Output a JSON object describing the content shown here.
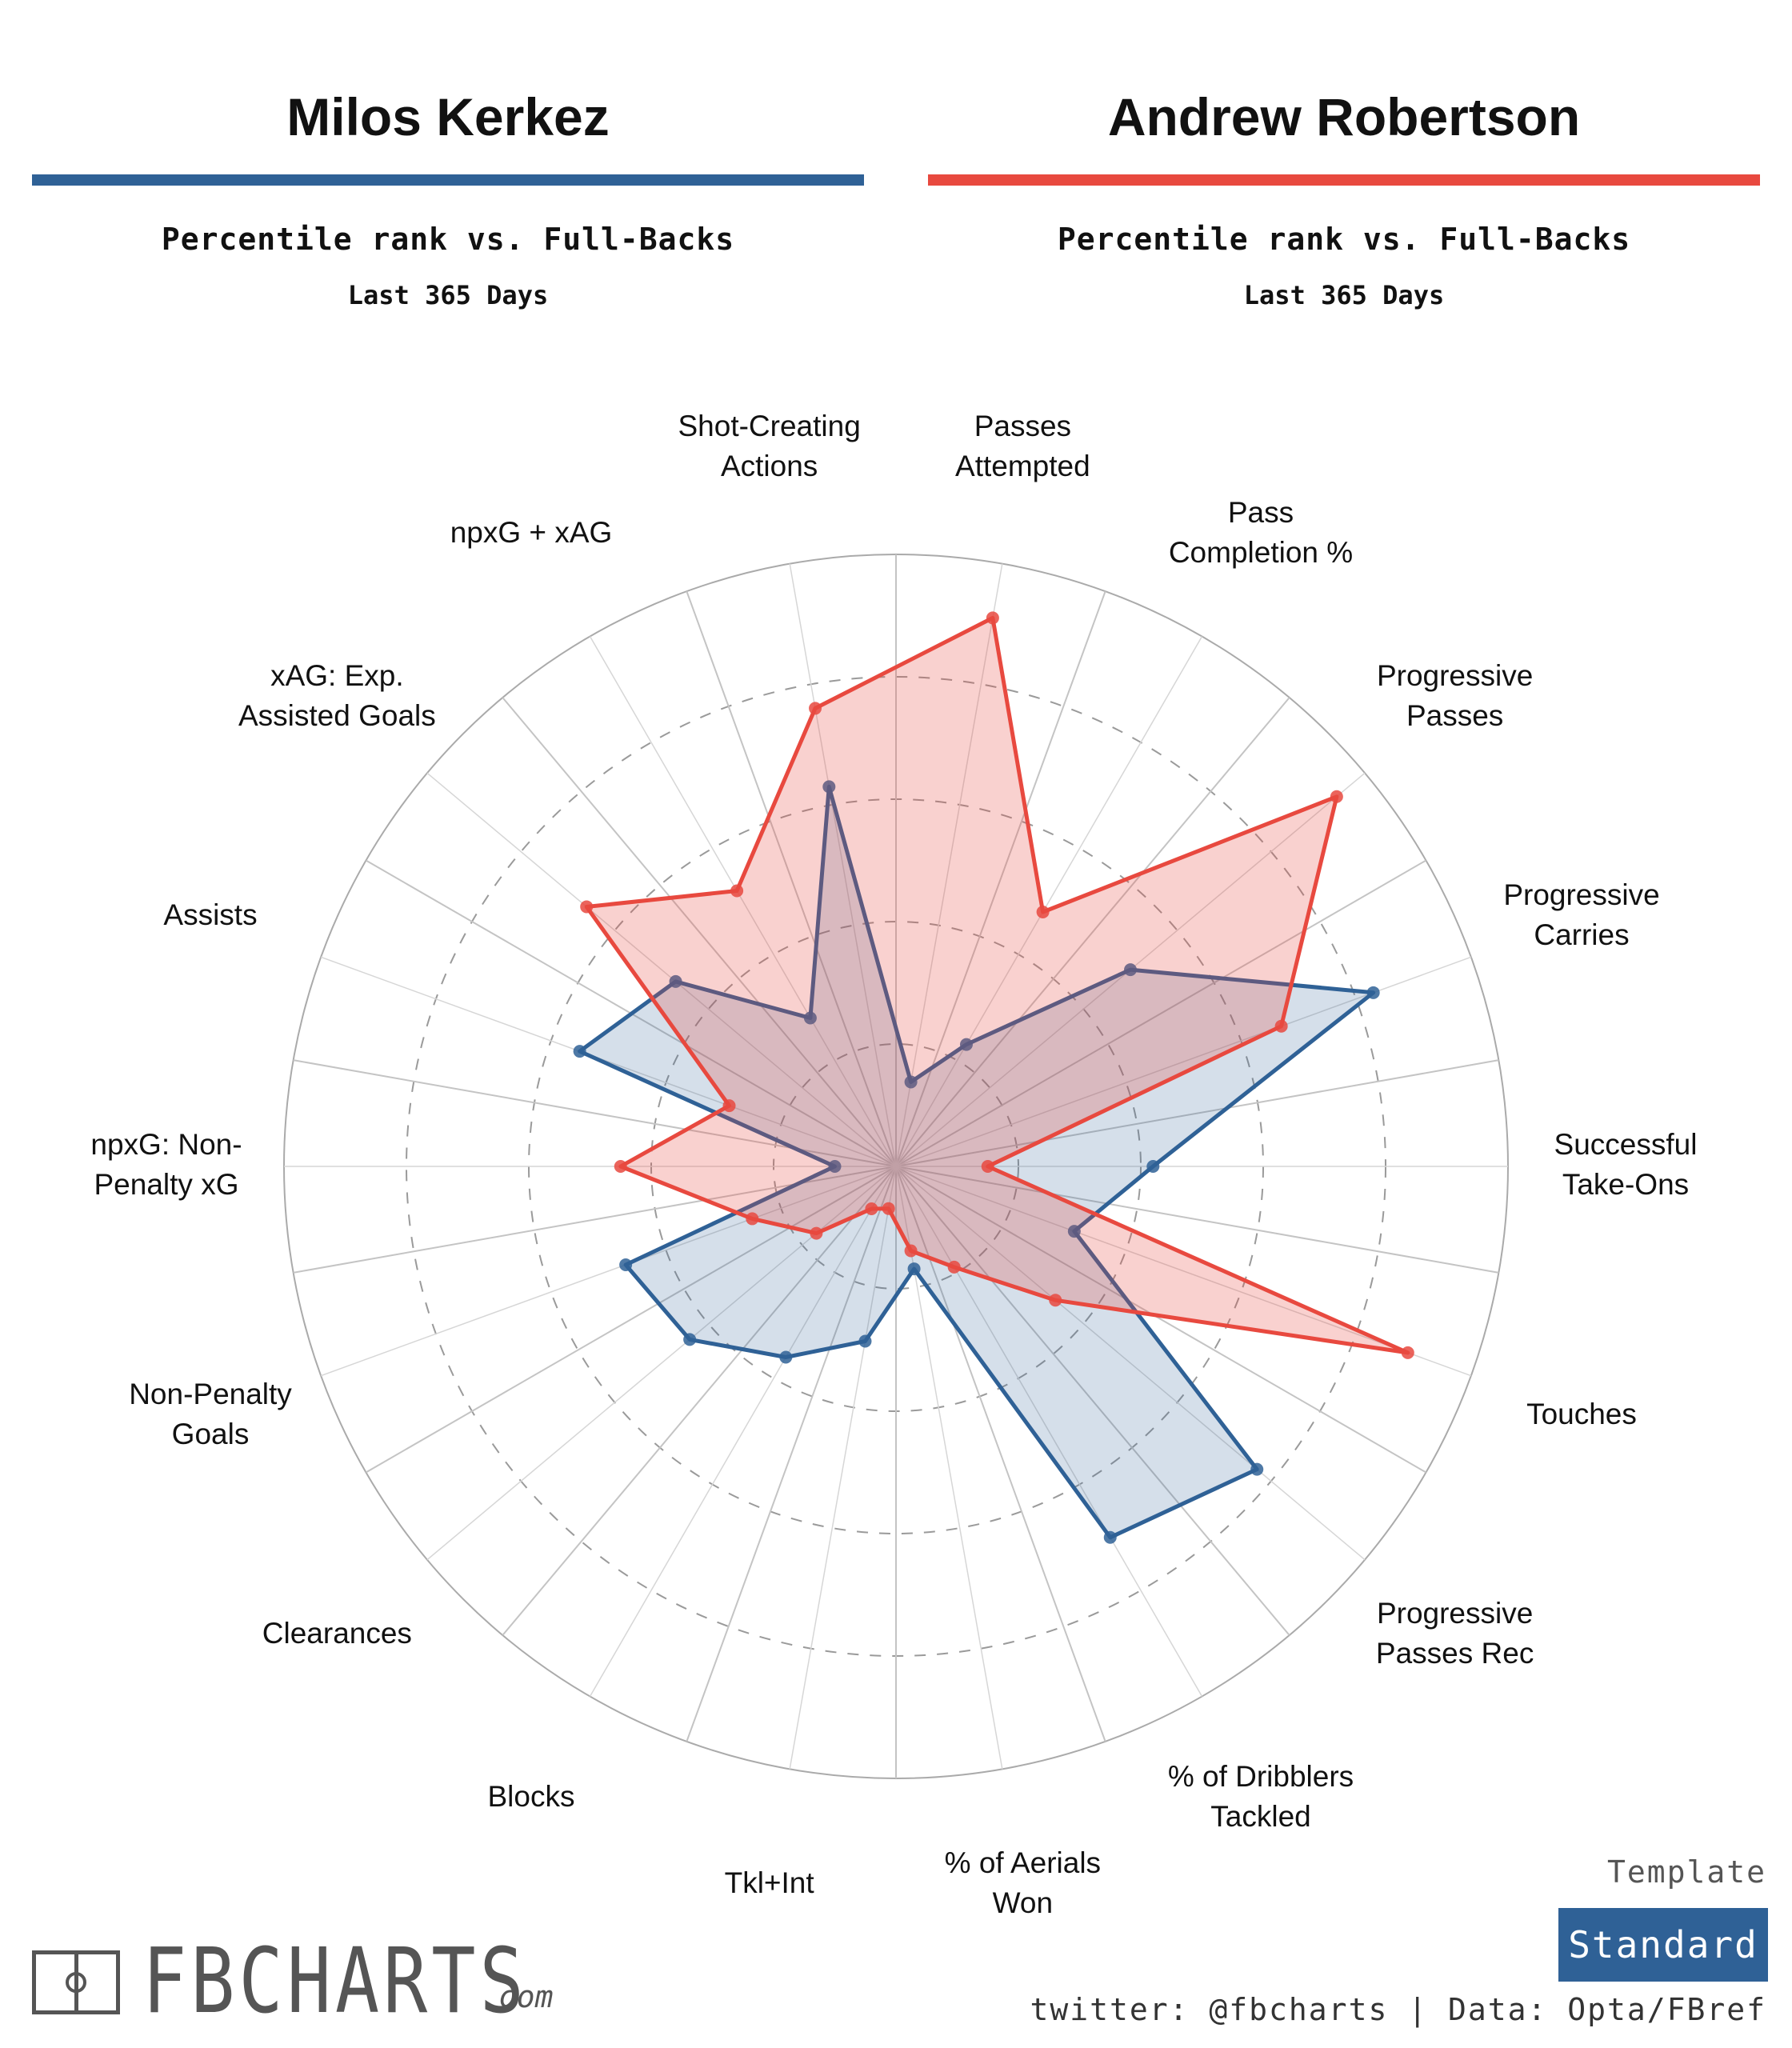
{
  "players": [
    {
      "name": "Milos Kerkez",
      "subtitle": "Percentile rank vs. Full-Backs",
      "period": "Last 365 Days",
      "color": "#2f6196"
    },
    {
      "name": "Andrew Robertson",
      "subtitle": "Percentile rank vs. Full-Backs",
      "period": "Last 365 Days",
      "color": "#e8493f"
    }
  ],
  "chart_data": {
    "type": "radar",
    "scale": [
      0,
      100
    ],
    "categories": [
      "Passes Attempted",
      "Pass Completion %",
      "Progressive Passes",
      "Progressive Carries",
      "Successful Take-Ons",
      "Touches",
      "Progressive Passes Rec",
      "% of Dribblers Tackled",
      "% of Aerials Won",
      "Tkl+Int",
      "Blocks",
      "Clearances",
      "Non-Penalty Goals",
      "npxG: Non-Penalty xG",
      "Assists",
      "xAG: Exp. Assisted Goals",
      "npxG + xAG",
      "Shot-Creating Actions"
    ],
    "label_lines": [
      [
        "Passes",
        "Attempted"
      ],
      [
        "Pass",
        "Completion %"
      ],
      [
        "Progressive",
        "Passes"
      ],
      [
        "Progressive",
        "Carries"
      ],
      [
        "Successful",
        "Take-Ons"
      ],
      [
        "Touches"
      ],
      [
        "Progressive",
        "Passes Rec"
      ],
      [
        "% of Dribblers",
        "Tackled"
      ],
      [
        "% of Aerials",
        "Won"
      ],
      [
        "Tkl+Int"
      ],
      [
        "Blocks"
      ],
      [
        "Clearances"
      ],
      [
        "Non-Penalty",
        "Goals"
      ],
      [
        "npxG: Non-",
        "Penalty xG"
      ],
      [
        "Assists"
      ],
      [
        "xAG: Exp.",
        "Assisted Goals"
      ],
      [
        "npxG + xAG"
      ],
      [
        "Shot-Creating",
        "Actions"
      ]
    ],
    "series": [
      {
        "name": "Milos Kerkez",
        "color": "#2f6196",
        "values": [
          14,
          23,
          50,
          83,
          42,
          31,
          77,
          70,
          17,
          29,
          36,
          44,
          47,
          10,
          55,
          47,
          28,
          63
        ]
      },
      {
        "name": "Andrew Robertson",
        "color": "#e8493f",
        "values": [
          91,
          48,
          94,
          67,
          15,
          89,
          34,
          19,
          14,
          7,
          8,
          17,
          25,
          45,
          29,
          66,
          52,
          76
        ]
      }
    ]
  },
  "footer": {
    "logo_text": "FBCHARTS",
    "logo_suffix": ".com",
    "template_label": "Template",
    "template_value": "Standard",
    "credits": "twitter: @fbcharts | Data: Opta/FBref"
  }
}
